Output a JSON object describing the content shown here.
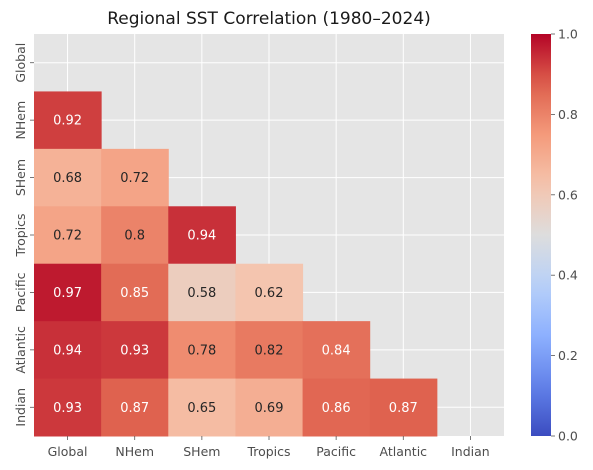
{
  "chart_data": {
    "type": "heatmap",
    "title": "Regional SST Correlation (1980–2024)",
    "xlabel": "",
    "ylabel": "",
    "x_categories": [
      "Global",
      "NHem",
      "SHem",
      "Tropics",
      "Pacific",
      "Atlantic",
      "Indian"
    ],
    "y_categories": [
      "Global",
      "NHem",
      "SHem",
      "Tropics",
      "Pacific",
      "Atlantic",
      "Indian"
    ],
    "matrix": [
      [
        null,
        null,
        null,
        null,
        null,
        null,
        null
      ],
      [
        0.92,
        null,
        null,
        null,
        null,
        null,
        null
      ],
      [
        0.68,
        0.72,
        null,
        null,
        null,
        null,
        null
      ],
      [
        0.72,
        0.8,
        0.94,
        null,
        null,
        null,
        null
      ],
      [
        0.97,
        0.85,
        0.58,
        0.62,
        null,
        null,
        null
      ],
      [
        0.94,
        0.93,
        0.78,
        0.82,
        0.84,
        null,
        null
      ],
      [
        0.93,
        0.87,
        0.65,
        0.69,
        0.86,
        0.87,
        null
      ]
    ],
    "mask": "upper triangle including diagonal",
    "colormap": "coolwarm",
    "vmin": 0.0,
    "vmax": 1.0,
    "colorbar_ticks": [
      "0.0",
      "0.2",
      "0.4",
      "0.6",
      "0.8",
      "1.0"
    ],
    "grid": true,
    "colors": {
      "background": "#e5e5e5",
      "grid": "#ffffff",
      "text": "#4d4d4d"
    }
  }
}
